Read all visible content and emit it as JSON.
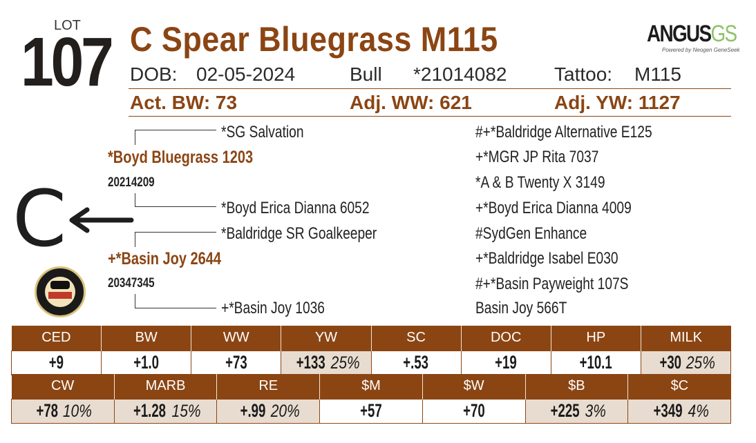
{
  "lot": {
    "label": "LOT",
    "number": "107"
  },
  "title": "C Spear Bluegrass M115",
  "logo": {
    "brand": "ANGUS",
    "brand_suffix": "GS",
    "tagline": "Powered by Neogen GeneSeek"
  },
  "info": {
    "dob_label": "DOB:",
    "dob": "02-05-2024",
    "sex": "Bull",
    "reg": "*21014082",
    "tattoo_label": "Tattoo:",
    "tattoo": "M115"
  },
  "performance": {
    "bw": "Act. BW: 73",
    "ww": "Adj. WW: 621",
    "yw": "Adj. YW: 1127"
  },
  "pedigree": {
    "sire": {
      "name": "*Boyd Bluegrass 1203",
      "reg": "20214209"
    },
    "sire_sire": "*SG Salvation",
    "sire_dam": "*Boyd Erica Dianna 6052",
    "dam": {
      "name": "+*Basin Joy 2644",
      "reg": "20347345"
    },
    "dam_sire": "*Baldridge SR Goalkeeper",
    "dam_dam": "+*Basin Joy 1036",
    "right_column": [
      "#+*Baldridge Alternative E125",
      "+*MGR JP Rita 7037",
      "*A & B Twenty X 3149",
      "+*Boyd Erica Dianna 4009",
      "#SydGen Enhance",
      "+*Baldridge Isabel E030",
      "#+*Basin Payweight 107S",
      "Basin Joy 566T"
    ]
  },
  "brand_mark": "C",
  "epd_row1": [
    {
      "label": "CED",
      "value": "+9",
      "pct": "",
      "highlight": false
    },
    {
      "label": "BW",
      "value": "+1.0",
      "pct": "",
      "highlight": false
    },
    {
      "label": "WW",
      "value": "+73",
      "pct": "",
      "highlight": false
    },
    {
      "label": "YW",
      "value": "+133",
      "pct": "25%",
      "highlight": true
    },
    {
      "label": "SC",
      "value": "+.53",
      "pct": "",
      "highlight": false
    },
    {
      "label": "DOC",
      "value": "+19",
      "pct": "",
      "highlight": false
    },
    {
      "label": "HP",
      "value": "+10.1",
      "pct": "",
      "highlight": false
    },
    {
      "label": "MILK",
      "value": "+30",
      "pct": "25%",
      "highlight": true
    }
  ],
  "epd_row2": [
    {
      "label": "CW",
      "value": "+78",
      "pct": "10%",
      "highlight": true
    },
    {
      "label": "MARB",
      "value": "+1.28",
      "pct": "15%",
      "highlight": true
    },
    {
      "label": "RE",
      "value": "+.99",
      "pct": "20%",
      "highlight": true
    },
    {
      "label": "$M",
      "value": "+57",
      "pct": "",
      "highlight": false
    },
    {
      "label": "$W",
      "value": "+70",
      "pct": "",
      "highlight": false
    },
    {
      "label": "$B",
      "value": "+225",
      "pct": "3%",
      "highlight": true
    },
    {
      "label": "$C",
      "value": "+349",
      "pct": "4%",
      "highlight": true
    }
  ],
  "colors": {
    "brown": "#8b4513",
    "highlight": "#e8dcd0"
  }
}
